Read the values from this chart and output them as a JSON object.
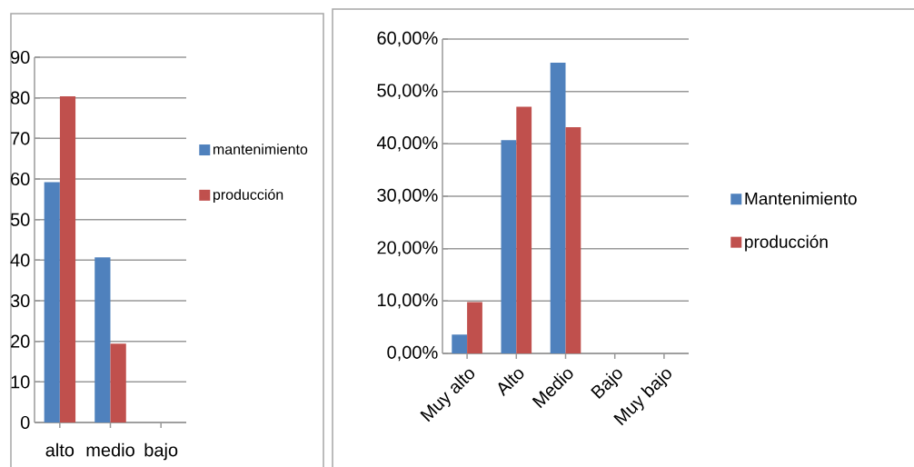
{
  "chart_data": [
    {
      "type": "bar",
      "categories": [
        "alto",
        "medio",
        "bajo"
      ],
      "series": [
        {
          "name": "mantenimiento",
          "color": "#4f81bd",
          "values": [
            59.2,
            40.7,
            0
          ]
        },
        {
          "name": "producción",
          "color": "#c0504d",
          "values": [
            80.4,
            19.4,
            0
          ]
        }
      ],
      "ylim": [
        0,
        90
      ],
      "yticks": [
        0,
        10,
        20,
        30,
        40,
        50,
        60,
        70,
        80,
        90
      ],
      "grid": "y",
      "legend": "right"
    },
    {
      "type": "bar",
      "categories": [
        "Muy alto",
        "Alto",
        "Medio",
        "Bajo",
        "Muy bajo"
      ],
      "series": [
        {
          "name": "Mantenimiento",
          "color": "#4f81bd",
          "values": [
            3.6,
            40.7,
            55.5,
            0,
            0
          ]
        },
        {
          "name": "producción",
          "color": "#c0504d",
          "values": [
            9.8,
            47.1,
            43.2,
            0,
            0
          ]
        }
      ],
      "ylim": [
        0,
        60
      ],
      "yticks": [
        {
          "value": 0,
          "label": "0,00%"
        },
        {
          "value": 10,
          "label": "10,00%"
        },
        {
          "value": 20,
          "label": "20,00%"
        },
        {
          "value": 30,
          "label": "30,00%"
        },
        {
          "value": 40,
          "label": "40,00%"
        },
        {
          "value": 50,
          "label": "50,00%"
        },
        {
          "value": 60,
          "label": "60,00%"
        }
      ],
      "grid": "y",
      "legend": "right"
    }
  ]
}
